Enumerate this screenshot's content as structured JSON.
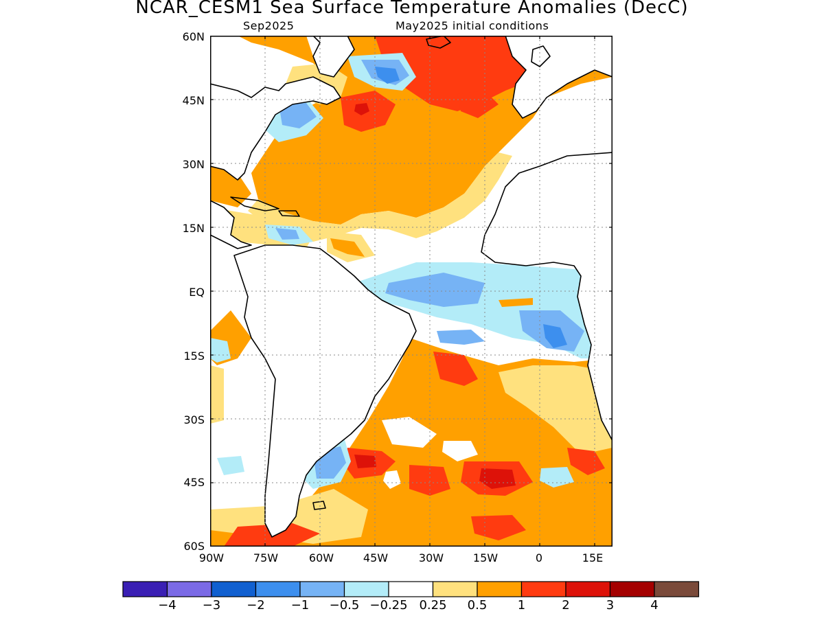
{
  "title": "NCAR_CESM1 Sea Surface Temperature Anomalies (DecC)",
  "subtitle_left": "Sep2025",
  "subtitle_right": "May2025 initial conditions",
  "lat_labels": [
    "60N",
    "45N",
    "30N",
    "15N",
    "EQ",
    "15S",
    "30S",
    "45S",
    "60S"
  ],
  "lon_labels": [
    "90W",
    "75W",
    "60W",
    "45W",
    "30W",
    "15W",
    "0",
    "15E"
  ],
  "colorbar": {
    "colors": [
      "#3a1fb4",
      "#7b6ae6",
      "#1160d0",
      "#3d8fee",
      "#76b3f5",
      "#b3ecf8",
      "#ffffff",
      "#ffe17e",
      "#ffa000",
      "#ff3b10",
      "#dd1209",
      "#a40000",
      "#7a4a3a"
    ],
    "labels": [
      "−4",
      "−3",
      "−2",
      "−1",
      "−0.5",
      "−0.25",
      "0.25",
      "0.5",
      "1",
      "2",
      "3",
      "4"
    ]
  },
  "palette": {
    "light_blue": "#b3ecf8",
    "med_blue": "#76b3f5",
    "blue": "#3d8fee",
    "yellow": "#ffe17e",
    "orange": "#ffa000",
    "red_orange": "#ff3b10",
    "red": "#dd1209"
  }
}
